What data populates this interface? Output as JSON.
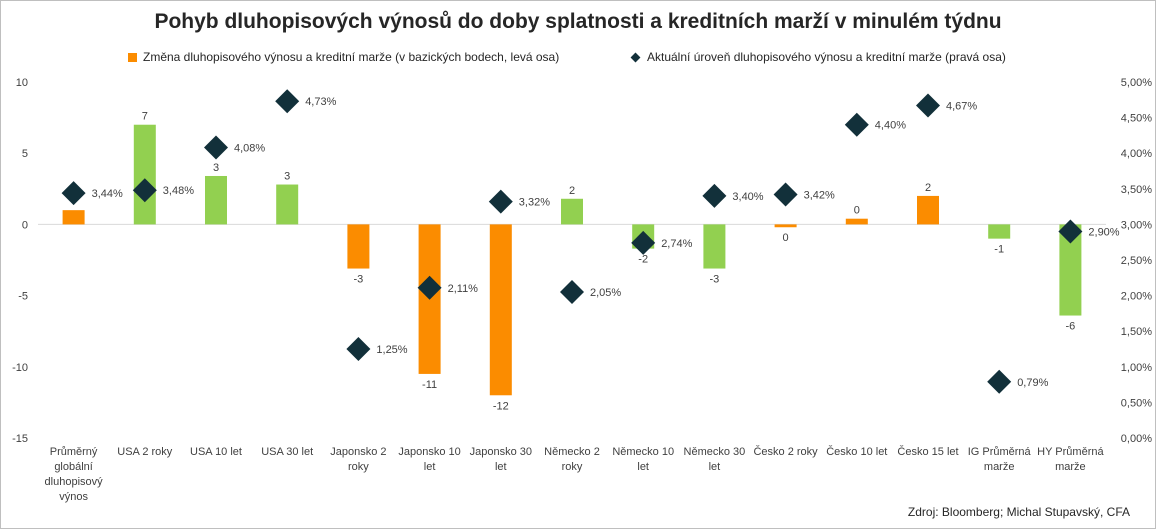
{
  "title": "Pohyb dluhopisových výnosů do doby splatnosti a kreditních marží v minulém týdnu",
  "legend": {
    "bars": "Změna dluhopisového výnosu a kreditní marže (v bazických bodech, levá osa)",
    "markers": "Aktuální úroveň dluhopisového výnosu a kreditní marže (pravá osa)"
  },
  "source": "Zdroj: Bloomberg; Michal Stupavský, CFA",
  "colors": {
    "orange": "#fb8c00",
    "green": "#92d050",
    "marker": "#12303a",
    "axis": "#d9d9d9"
  },
  "chart_data": {
    "type": "bar",
    "categories": [
      "Průměrný globální dluhopisový výnos",
      "USA 2 roky",
      "USA 10 let",
      "USA 30 let",
      "Japonsko 2 roky",
      "Japonsko 10 let",
      "Japonsko 30 let",
      "Německo 2 roky",
      "Německo 10 let",
      "Německo 30 let",
      "Česko 2 roky",
      "Česko 10 let",
      "Česko 15 let",
      "IG Průměrná marže",
      "HY Průměrná marže"
    ],
    "category_lines": [
      [
        "Průměrný",
        "globální",
        "dluhopisový",
        "výnos"
      ],
      [
        "USA 2 roky"
      ],
      [
        "USA 10 let"
      ],
      [
        "USA 30 let"
      ],
      [
        "Japonsko 2",
        "roky"
      ],
      [
        "Japonsko 10",
        "let"
      ],
      [
        "Japonsko 30",
        "let"
      ],
      [
        "Německo 2",
        "roky"
      ],
      [
        "Německo 10",
        "let"
      ],
      [
        "Německo 30",
        "let"
      ],
      [
        "Česko 2 roky"
      ],
      [
        "Česko 10 let"
      ],
      [
        "Česko 15 let"
      ],
      [
        "IG Průměrná",
        "marže"
      ],
      [
        "HY Průměrná",
        "marže"
      ]
    ],
    "series": [
      {
        "name": "Změna dluhopisového výnosu a kreditní marže (v bazických bodech, levá osa)",
        "axis": "left",
        "values": [
          1,
          7,
          3.4,
          2.8,
          -3.1,
          -10.5,
          -12,
          1.8,
          -1.7,
          -3.1,
          -0.2,
          0.4,
          2,
          -1,
          -6.4
        ],
        "labels": [
          "",
          "7",
          "3",
          "3",
          "-3",
          "-11",
          "-12",
          "2",
          "-2",
          "-3",
          "0",
          "0",
          "2",
          "-1",
          "-6"
        ],
        "bar_colors": [
          "#fb8c00",
          "#92d050",
          "#92d050",
          "#92d050",
          "#fb8c00",
          "#fb8c00",
          "#fb8c00",
          "#92d050",
          "#92d050",
          "#92d050",
          "#fb8c00",
          "#fb8c00",
          "#fb8c00",
          "#92d050",
          "#92d050"
        ]
      },
      {
        "name": "Aktuální úroveň dluhopisového výnosu a kreditní marže (pravá osa)",
        "axis": "right",
        "type": "scatter",
        "values": [
          3.44,
          3.48,
          4.08,
          4.73,
          1.25,
          2.11,
          3.32,
          2.05,
          2.74,
          3.4,
          3.42,
          4.4,
          4.67,
          0.79,
          2.9
        ],
        "labels": [
          "3,44%",
          "3,48%",
          "4,08%",
          "4,73%",
          "1,25%",
          "2,11%",
          "3,32%",
          "2,05%",
          "2,74%",
          "3,40%",
          "3,42%",
          "4,40%",
          "4,67%",
          "0,79%",
          "2,90%"
        ]
      }
    ],
    "y_left": {
      "lim": [
        -15,
        10
      ],
      "ticks": [
        "10",
        "5",
        "0",
        "-5",
        "-10",
        "-15"
      ]
    },
    "y_right": {
      "lim": [
        0,
        5
      ],
      "ticks": [
        "5,00%",
        "4,50%",
        "4,00%",
        "3,50%",
        "3,00%",
        "2,50%",
        "2,00%",
        "1,50%",
        "1,00%",
        "0,50%",
        "0,00%"
      ]
    },
    "legend_position": "top",
    "grid": false
  }
}
